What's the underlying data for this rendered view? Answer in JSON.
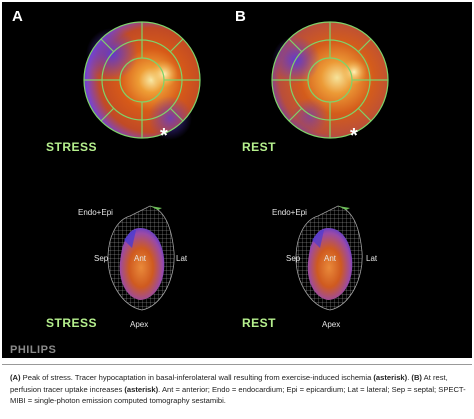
{
  "panels": {
    "a": {
      "letter": "A",
      "polar_label": "STRESS",
      "model_label": "STRESS"
    },
    "b": {
      "letter": "B",
      "polar_label": "REST",
      "model_label": "REST"
    }
  },
  "annotations": {
    "endo_epi": "Endo+Epi",
    "sep": "Sep",
    "ant": "Ant",
    "lat": "Lat",
    "apex": "Apex",
    "asterisk": "*"
  },
  "brand": "PHILIPS",
  "caption": {
    "a_label": "(A)",
    "a_text": " Peak of stress. Tracer hypocaptation in basal-inferolateral wall resulting from exercise-induced ischemia ",
    "a_asterisk": "(asterisk)",
    "a_end": ". ",
    "b_label": "(B)",
    "b_text": " At rest, perfusion tracer uptake increases ",
    "b_asterisk": "(asterisk)",
    "b_end": ". Ant = anterior; Endo = endocardium; Epi = epicardium; Lat = lateral; Sep = septal; SPECT-MIBI = single-photon emission computed tomography sestamibi."
  },
  "colors": {
    "figure_background": "#000000",
    "mode_label": "#b6f08e",
    "polar_grid": "#7fd36a",
    "perfusion_hot": "#f4e6a0",
    "perfusion_mid": "#e0661a",
    "perfusion_low": "#6a3fd6"
  }
}
